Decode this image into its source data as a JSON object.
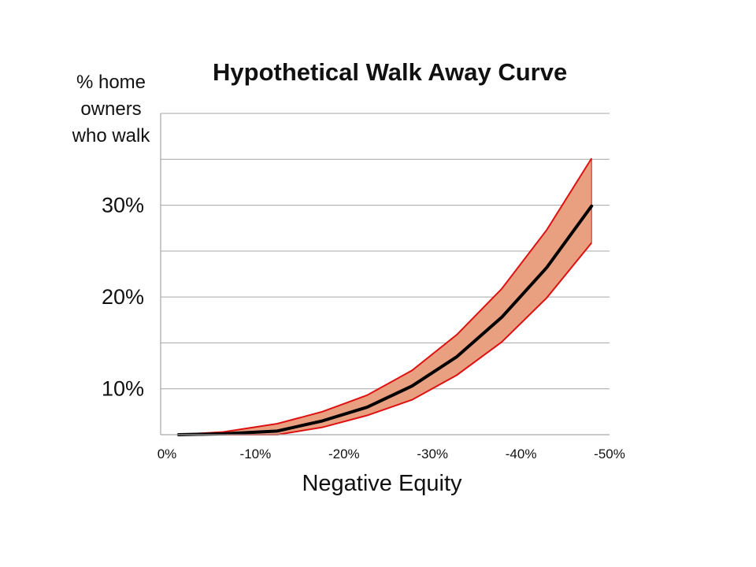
{
  "chart_data": {
    "type": "area",
    "title": "Hypothetical Walk Away Curve",
    "ylabel": "% home owners who walk",
    "xlabel": "Negative Equity",
    "x_ticks": [
      "0%",
      "-10%",
      "-20%",
      "-30%",
      "-40%",
      "-50%"
    ],
    "y_ticks": [
      "10%",
      "20%",
      "30%"
    ],
    "y_tick_values": [
      10,
      20,
      30
    ],
    "xlim": [
      0,
      50
    ],
    "ylim": [
      5,
      40
    ],
    "y_gridlines": [
      10,
      15,
      20,
      25,
      30,
      35,
      40
    ],
    "grid": true,
    "x": [
      2,
      7,
      13,
      18,
      23,
      28,
      33,
      38,
      43,
      48
    ],
    "series": [
      {
        "values": [
          5.0,
          5.1,
          5.4,
          6.5,
          8.0,
          10.3,
          13.5,
          17.8,
          23.2,
          29.9
        ]
      }
    ],
    "band_upper": [
      5.0,
      5.3,
      6.2,
      7.5,
      9.3,
      12.0,
      15.9,
      20.9,
      27.3,
      35.1
    ],
    "band_lower": [
      5.0,
      5.0,
      5.0,
      5.8,
      7.1,
      8.8,
      11.5,
      15.1,
      19.9,
      25.9
    ],
    "colors": {
      "band_fill": "#e8a080",
      "band_edge": "#dd1111",
      "line": "#000000",
      "grid": "#a6a6a6"
    }
  }
}
